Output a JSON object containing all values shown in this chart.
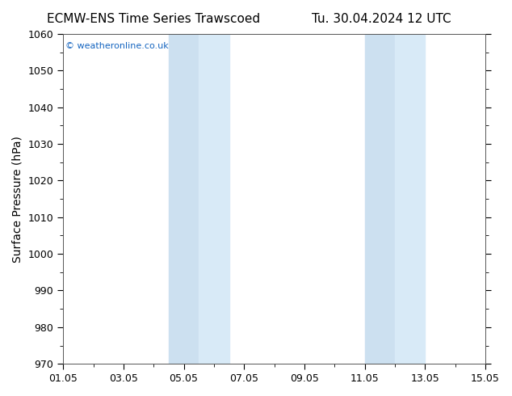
{
  "title_left": "ECMW-ENS Time Series Trawscoed",
  "title_right": "Tu. 30.04.2024 12 UTC",
  "ylabel": "Surface Pressure (hPa)",
  "ylim": [
    970,
    1060
  ],
  "yticks": [
    970,
    980,
    990,
    1000,
    1010,
    1020,
    1030,
    1040,
    1050,
    1060
  ],
  "xlim_start": 0,
  "xlim_end": 14,
  "xtick_labels": [
    "01.05",
    "03.05",
    "05.05",
    "07.05",
    "09.05",
    "11.05",
    "13.05",
    "15.05"
  ],
  "xtick_positions": [
    0,
    2,
    4,
    6,
    8,
    10,
    12,
    14
  ],
  "shaded_bands": [
    {
      "x_start": 3.5,
      "x_end": 4.5,
      "color": "#cce0f0"
    },
    {
      "x_start": 4.5,
      "x_end": 5.5,
      "color": "#d8eaf7"
    },
    {
      "x_start": 10.0,
      "x_end": 11.0,
      "color": "#cce0f0"
    },
    {
      "x_start": 11.0,
      "x_end": 12.0,
      "color": "#d8eaf7"
    }
  ],
  "background_color": "#ffffff",
  "plot_bg_color": "#ffffff",
  "watermark_text": "© weatheronline.co.uk",
  "watermark_color": "#1565c0",
  "title_fontsize": 11,
  "axis_label_fontsize": 10,
  "tick_fontsize": 9,
  "border_color": "#555555"
}
